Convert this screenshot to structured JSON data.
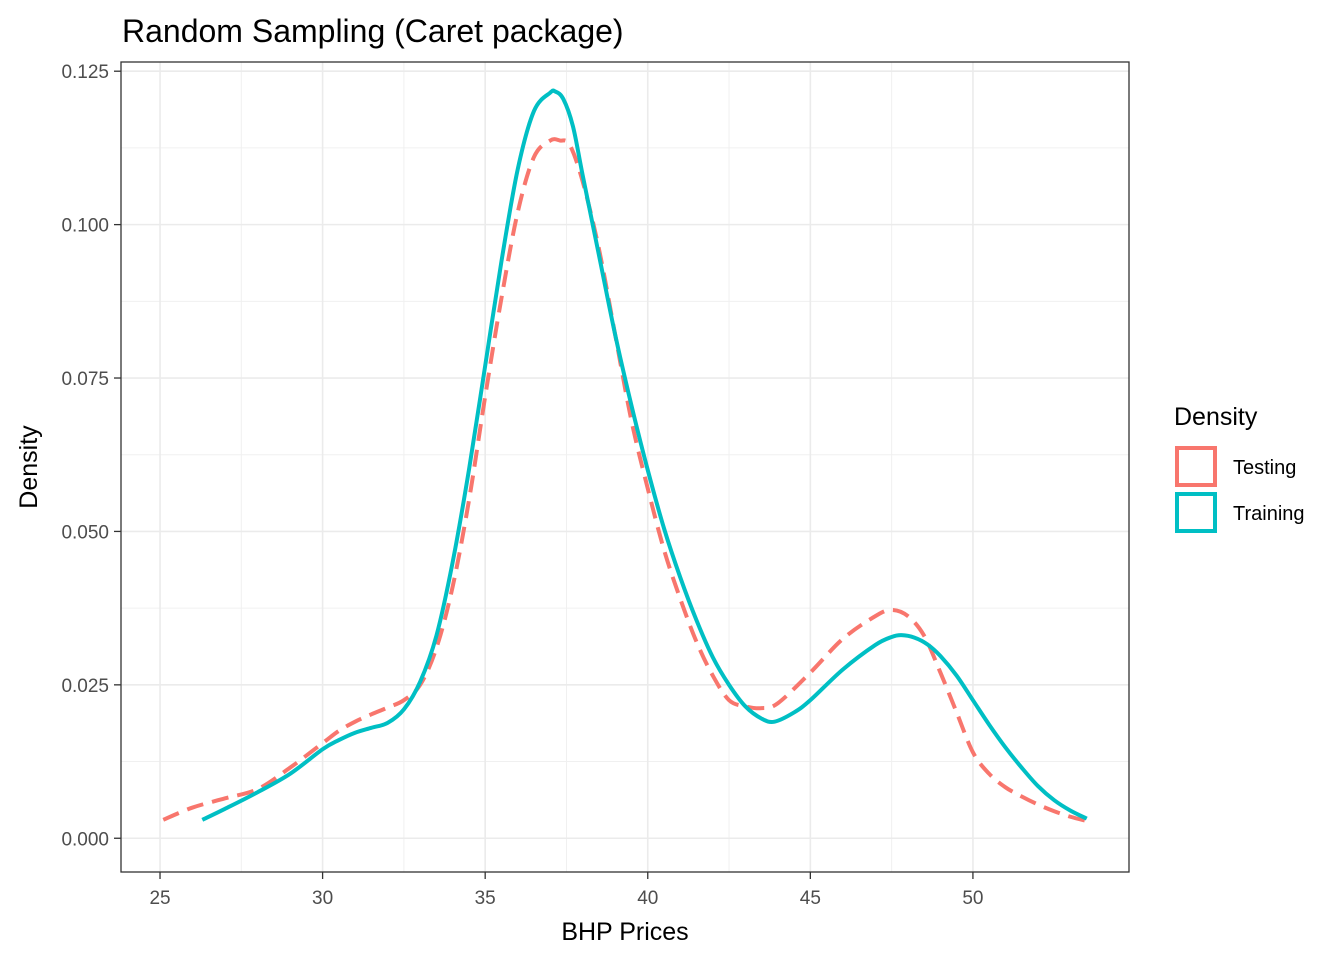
{
  "chart_data": {
    "type": "line",
    "title": "Random Sampling (Caret package)",
    "xlabel": "BHP Prices",
    "ylabel": "Density",
    "xlim": [
      23.8,
      54.8
    ],
    "ylim": [
      -0.0055,
      0.1265
    ],
    "x_ticks": [
      25,
      30,
      35,
      40,
      45,
      50
    ],
    "x_tick_labels": [
      "25",
      "30",
      "35",
      "40",
      "45",
      "50"
    ],
    "y_ticks": [
      0.0,
      0.025,
      0.05,
      0.075,
      0.1,
      0.125
    ],
    "y_tick_labels": [
      "0.000",
      "0.025",
      "0.050",
      "0.075",
      "0.100",
      "0.125"
    ],
    "grid": true,
    "legend": {
      "title": "Density",
      "position": "right"
    },
    "series": [
      {
        "name": "Testing",
        "color": "#F8766D",
        "dash": "dashed",
        "x": [
          25.1,
          26.0,
          27.0,
          28.0,
          29.0,
          30.0,
          30.5,
          31.0,
          31.5,
          32.0,
          32.5,
          33.0,
          33.5,
          34.0,
          34.5,
          35.0,
          35.5,
          36.0,
          36.5,
          37.0,
          37.3,
          37.6,
          38.0,
          38.5,
          39.0,
          39.5,
          40.0,
          40.5,
          41.0,
          41.5,
          42.0,
          42.5,
          43.0,
          43.5,
          44.0,
          45.0,
          46.0,
          47.0,
          47.5,
          48.0,
          48.5,
          49.0,
          49.5,
          50.0,
          50.5,
          51.0,
          51.5,
          52.0,
          52.5,
          53.0,
          53.5
        ],
        "y": [
          0.003,
          0.005,
          0.0065,
          0.008,
          0.0115,
          0.0155,
          0.0175,
          0.019,
          0.0202,
          0.0213,
          0.0225,
          0.025,
          0.031,
          0.041,
          0.055,
          0.072,
          0.088,
          0.102,
          0.111,
          0.1137,
          0.1137,
          0.113,
          0.107,
          0.096,
          0.082,
          0.068,
          0.057,
          0.047,
          0.039,
          0.032,
          0.0265,
          0.0225,
          0.0215,
          0.0212,
          0.022,
          0.027,
          0.0325,
          0.0362,
          0.0372,
          0.0362,
          0.033,
          0.027,
          0.0205,
          0.014,
          0.0105,
          0.0083,
          0.0068,
          0.0055,
          0.0044,
          0.0035,
          0.0028
        ]
      },
      {
        "name": "Training",
        "color": "#00BFC4",
        "dash": "solid",
        "x": [
          26.3,
          27.0,
          28.0,
          29.0,
          30.0,
          30.5,
          31.0,
          31.5,
          32.0,
          32.5,
          33.0,
          33.5,
          34.0,
          34.5,
          35.0,
          35.5,
          36.0,
          36.5,
          37.0,
          37.15,
          37.4,
          37.7,
          38.0,
          38.5,
          39.0,
          39.5,
          40.0,
          40.5,
          41.0,
          41.5,
          42.0,
          42.5,
          43.0,
          43.5,
          43.9,
          44.5,
          45.0,
          46.0,
          47.0,
          47.5,
          47.8,
          48.2,
          48.6,
          49.0,
          49.5,
          50.0,
          50.5,
          51.0,
          51.5,
          52.0,
          52.5,
          53.0,
          53.5
        ],
        "y": [
          0.003,
          0.0048,
          0.0075,
          0.0105,
          0.0145,
          0.016,
          0.0172,
          0.018,
          0.0188,
          0.021,
          0.0255,
          0.033,
          0.045,
          0.06,
          0.077,
          0.094,
          0.109,
          0.1185,
          0.1215,
          0.1217,
          0.1205,
          0.116,
          0.108,
          0.095,
          0.082,
          0.0705,
          0.06,
          0.0505,
          0.0425,
          0.0355,
          0.0295,
          0.025,
          0.0215,
          0.0195,
          0.019,
          0.0205,
          0.0225,
          0.0275,
          0.0315,
          0.0328,
          0.0331,
          0.0327,
          0.0316,
          0.0297,
          0.0265,
          0.0225,
          0.0185,
          0.0148,
          0.0115,
          0.0085,
          0.0062,
          0.0045,
          0.0032
        ]
      }
    ]
  }
}
